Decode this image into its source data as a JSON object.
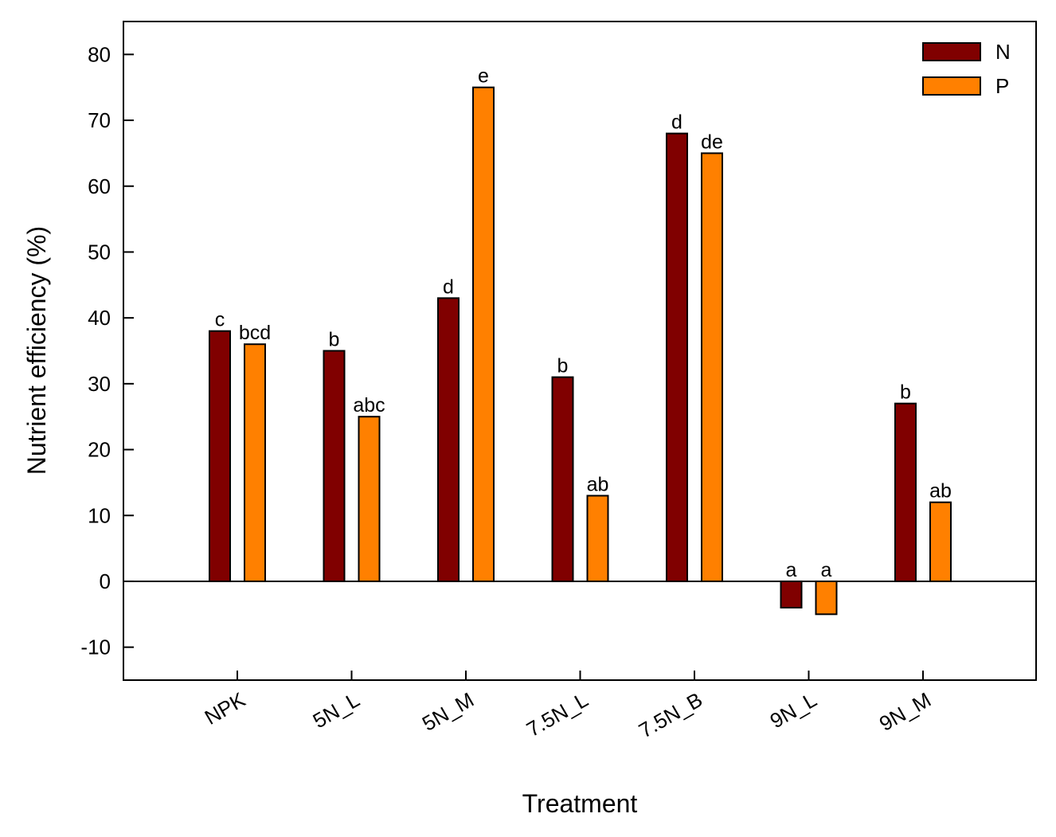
{
  "chart_data": {
    "type": "bar",
    "xlabel": "Treatment",
    "ylabel": "Nutrient efficiency (%)",
    "ylim": [
      -15,
      85
    ],
    "yticks": [
      -10,
      0,
      10,
      20,
      30,
      40,
      50,
      60,
      70,
      80
    ],
    "grid": false,
    "legend_position": "top-right",
    "categories": [
      "NPK",
      "5N_L",
      "5N_M",
      "7.5N_L",
      "7.5N_B",
      "9N_L",
      "9N_M"
    ],
    "series": [
      {
        "name": "N",
        "color": "#800000",
        "values": [
          38,
          35,
          43,
          31,
          68,
          -4,
          27
        ],
        "labels": [
          "c",
          "b",
          "d",
          "b",
          "d",
          "a",
          "b"
        ]
      },
      {
        "name": "P",
        "color": "#FF8000",
        "values": [
          36,
          25,
          75,
          13,
          65,
          -5,
          12
        ],
        "labels": [
          "bcd",
          "abc",
          "e",
          "ab",
          "de",
          "a",
          "ab"
        ]
      }
    ]
  }
}
